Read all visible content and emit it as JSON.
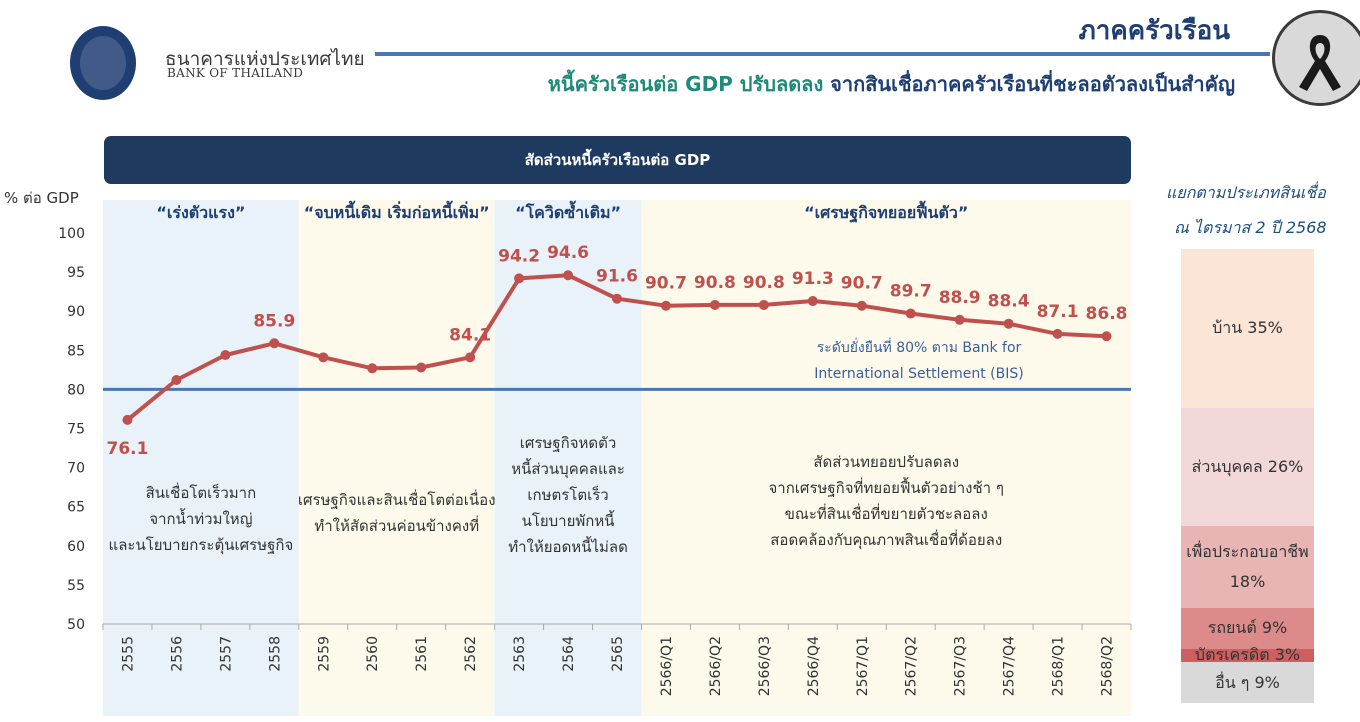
{
  "header": {
    "bank_name_th": "ธนาคารแห่งประเทศไทย",
    "bank_name_en": "BANK OF THAILAND",
    "section_title": "ภาคครัวเรือน",
    "subtitle_part1": "หนี้ครัวเรือนต่อ GDP ปรับลดลง",
    "subtitle_part2": " จากสินเชื่อภาคครัวเรือนที่ชะลอตัวลงเป็นสำคัญ"
  },
  "chart_data": {
    "type": "line",
    "title": "สัดส่วนหนี้ครัวเรือนต่อ GDP",
    "ylabel": "% ต่อ GDP",
    "ylim": [
      50,
      100
    ],
    "yticks": [
      50,
      55,
      60,
      65,
      70,
      75,
      80,
      85,
      90,
      95,
      100
    ],
    "categories": [
      "2555",
      "2556",
      "2557",
      "2558",
      "2559",
      "2560",
      "2561",
      "2562",
      "2563",
      "2564",
      "2565",
      "2566/Q1",
      "2566/Q2",
      "2566/Q3",
      "2566/Q4",
      "2567/Q1",
      "2567/Q2",
      "2567/Q3",
      "2567/Q4",
      "2568/Q1",
      "2568/Q2"
    ],
    "values": [
      76.1,
      81.2,
      84.4,
      85.9,
      84.1,
      82.7,
      82.8,
      84.1,
      94.2,
      94.6,
      91.6,
      90.7,
      90.8,
      90.8,
      91.3,
      90.7,
      89.7,
      88.9,
      88.4,
      87.1,
      86.8
    ],
    "point_labels": [
      {
        "index": 0,
        "text": "76.1"
      },
      {
        "index": 3,
        "text": "85.9"
      },
      {
        "index": 7,
        "text": "84.1"
      },
      {
        "index": 8,
        "text": "94.2"
      },
      {
        "index": 9,
        "text": "94.6"
      },
      {
        "index": 10,
        "text": "91.6"
      },
      {
        "index": 11,
        "text": "90.7"
      },
      {
        "index": 12,
        "text": "90.8"
      },
      {
        "index": 13,
        "text": "90.8"
      },
      {
        "index": 14,
        "text": "91.3"
      },
      {
        "index": 15,
        "text": "90.7"
      },
      {
        "index": 16,
        "text": "89.7"
      },
      {
        "index": 17,
        "text": "88.9"
      },
      {
        "index": 18,
        "text": "88.4"
      },
      {
        "index": 19,
        "text": "87.1"
      },
      {
        "index": 20,
        "text": "86.8"
      }
    ],
    "line_color": "#c0504d",
    "reference_line": {
      "value": 80,
      "color": "#4a76b8",
      "label_lines": [
        "ระดับยั่งยืนที่ 80% ตาม Bank for",
        "International Settlement (BIS)"
      ]
    },
    "phases": [
      {
        "start": 0,
        "end": 3,
        "color": "#e8f2f8",
        "title": "“เร่งตัวแรง”",
        "note_lines": [
          "สินเชื่อโตเร็วมาก",
          "จากน้ำท่วมใหญ่",
          "และนโยบายกระตุ้นเศรษฐกิจ"
        ]
      },
      {
        "start": 4,
        "end": 7,
        "color": "#fdfaec",
        "title": "“จบหนี้เดิม เริ่มก่อหนี้เพิ่ม”",
        "note_lines": [
          "เศรษฐกิจและสินเชื่อโตต่อเนื่อง",
          "ทำให้สัดส่วนค่อนข้างคงที่"
        ]
      },
      {
        "start": 8,
        "end": 10,
        "color": "#e8f2f8",
        "title": "“โควิดซ้ำเติม”",
        "note_lines": [
          "เศรษฐกิจหดตัว",
          "หนี้ส่วนบุคคลและ",
          "เกษตรโตเร็ว",
          "นโยบายพักหนี้",
          "ทำให้ยอดหนี้ไม่ลด"
        ]
      },
      {
        "start": 11,
        "end": 20,
        "color": "#fdfaec",
        "title": "“เศรษฐกิจทยอยฟื้นตัว”",
        "note_lines": [
          "สัดส่วนทยอยปรับลดลง",
          "จากเศรษฐกิจที่ทยอยฟื้นตัวอย่างช้า ๆ",
          "ขณะที่สินเชื่อที่ขยายตัวชะลอลง",
          "สอดคล้องกับคุณภาพสินเชื่อที่ด้อยลง"
        ]
      }
    ]
  },
  "composition": {
    "title_line1": "แยกตามประเภทสินเชื่อ",
    "title_line2": "ณ ไตรมาส 2 ปี 2568",
    "segments": [
      {
        "label": "บ้าน 35%",
        "value": 35,
        "color": "#fbe5d6"
      },
      {
        "label": "ส่วนบุคคล 26%",
        "value": 26,
        "color": "#f2d8d8"
      },
      {
        "label": "เพื่อประกอบอาชีพ 18%",
        "value": 18,
        "color": "#e8b4b4"
      },
      {
        "label": "รถยนต์ 9%",
        "value": 9,
        "color": "#dc8a8a"
      },
      {
        "label": "บัตรเครดิต 3%",
        "value": 3,
        "color": "#cc5f5f"
      },
      {
        "label": "อื่น ๆ 9%",
        "value": 9,
        "color": "#d9d9d9"
      }
    ]
  }
}
